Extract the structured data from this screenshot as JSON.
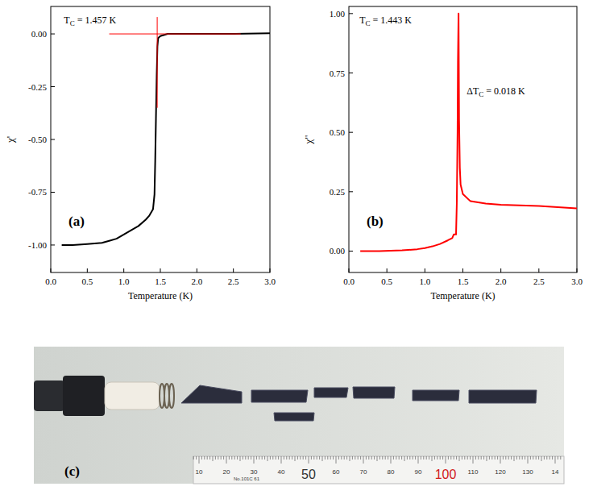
{
  "chart_data": [
    {
      "type": "line",
      "panel": "(a)",
      "x_label": "Temperature (K)",
      "y_label": "χ'",
      "color": "#000000",
      "x": [
        0.15,
        0.3,
        0.5,
        0.7,
        0.8,
        0.9,
        1.0,
        1.1,
        1.2,
        1.3,
        1.35,
        1.4,
        1.42,
        1.43,
        1.44,
        1.45,
        1.46,
        1.47,
        1.5,
        1.6,
        1.8,
        2.0,
        2.5,
        3.0
      ],
      "values": [
        -1.0,
        -1.0,
        -0.995,
        -0.99,
        -0.98,
        -0.97,
        -0.95,
        -0.93,
        -0.91,
        -0.88,
        -0.86,
        -0.83,
        -0.76,
        -0.6,
        -0.4,
        -0.2,
        -0.06,
        -0.02,
        -0.01,
        0,
        0,
        0,
        0,
        0.003
      ],
      "xlim": [
        0,
        3
      ],
      "xticks": [
        {
          "value": 0,
          "label": "0.0"
        },
        0.5,
        {
          "value": 1,
          "label": "1.0"
        },
        1.5,
        {
          "value": 2,
          "label": "2.0"
        },
        2.5,
        {
          "value": 3,
          "label": "3.0"
        }
      ],
      "ylim": [
        -1.13,
        0.13
      ],
      "yticks": [
        {
          "value": -1,
          "label": "-1.00"
        },
        {
          "value": -0.75,
          "label": "-0.75"
        },
        {
          "value": -0.5,
          "label": "-0.50"
        },
        {
          "value": -0.25,
          "label": "-0.25"
        },
        {
          "value": 0,
          "label": "0.00"
        }
      ],
      "annotations": [
        {
          "text": "T",
          "subscript": "C",
          "suffix": " = 1.457 K",
          "x": 0.18,
          "y": 0.05
        }
      ],
      "reference_lines": [
        {
          "x": 1.457,
          "y1": -0.35,
          "y2": 0.08,
          "color": "#ff0000"
        },
        {
          "y": 0,
          "x1": 0.8,
          "x2": 2.6,
          "color": "#ff0000"
        }
      ]
    },
    {
      "type": "line",
      "panel": "(b)",
      "x_label": "Temperature (K)",
      "y_label": "χ\"",
      "color": "#ff0000",
      "x": [
        0.15,
        0.4,
        0.7,
        0.9,
        1.0,
        1.1,
        1.2,
        1.3,
        1.36,
        1.38,
        1.41,
        1.42,
        1.43,
        1.435,
        1.443,
        1.45,
        1.46,
        1.47,
        1.5,
        1.6,
        1.8,
        2.0,
        2.5,
        3.0
      ],
      "values": [
        0,
        0,
        0.003,
        0.008,
        0.013,
        0.02,
        0.03,
        0.045,
        0.055,
        0.07,
        0.07,
        0.2,
        0.5,
        0.8,
        1.0,
        0.55,
        0.35,
        0.28,
        0.24,
        0.21,
        0.2,
        0.195,
        0.19,
        0.18
      ],
      "xlim": [
        0,
        3
      ],
      "xticks": [
        {
          "value": 0,
          "label": "0.0"
        },
        0.5,
        {
          "value": 1,
          "label": "1.0"
        },
        1.5,
        {
          "value": 2,
          "label": "2.0"
        },
        2.5,
        {
          "value": 3,
          "label": "3.0"
        }
      ],
      "ylim": [
        -0.09,
        1.03
      ],
      "yticks": [
        {
          "value": 0,
          "label": "0.00"
        },
        0.25,
        {
          "value": 0.5,
          "label": "0.50"
        },
        0.75,
        {
          "value": 1,
          "label": "1.00"
        }
      ],
      "annotations": [
        {
          "text": "T",
          "subscript": "C",
          "suffix": " = 1.443 K",
          "x": 0.14,
          "y": 0.96
        },
        {
          "text": "ΔT",
          "subscript": "C",
          "suffix": " = 0.018 K",
          "x": 1.55,
          "y": 0.66
        }
      ]
    }
  ],
  "photo": {
    "label": "(c)",
    "ruler_labels": [
      "10",
      "20",
      "30",
      "40",
      "50",
      "60",
      "70",
      "80",
      "90",
      "100",
      "110",
      "120",
      "130",
      "14"
    ],
    "ruler_text": "No.101C 61"
  }
}
